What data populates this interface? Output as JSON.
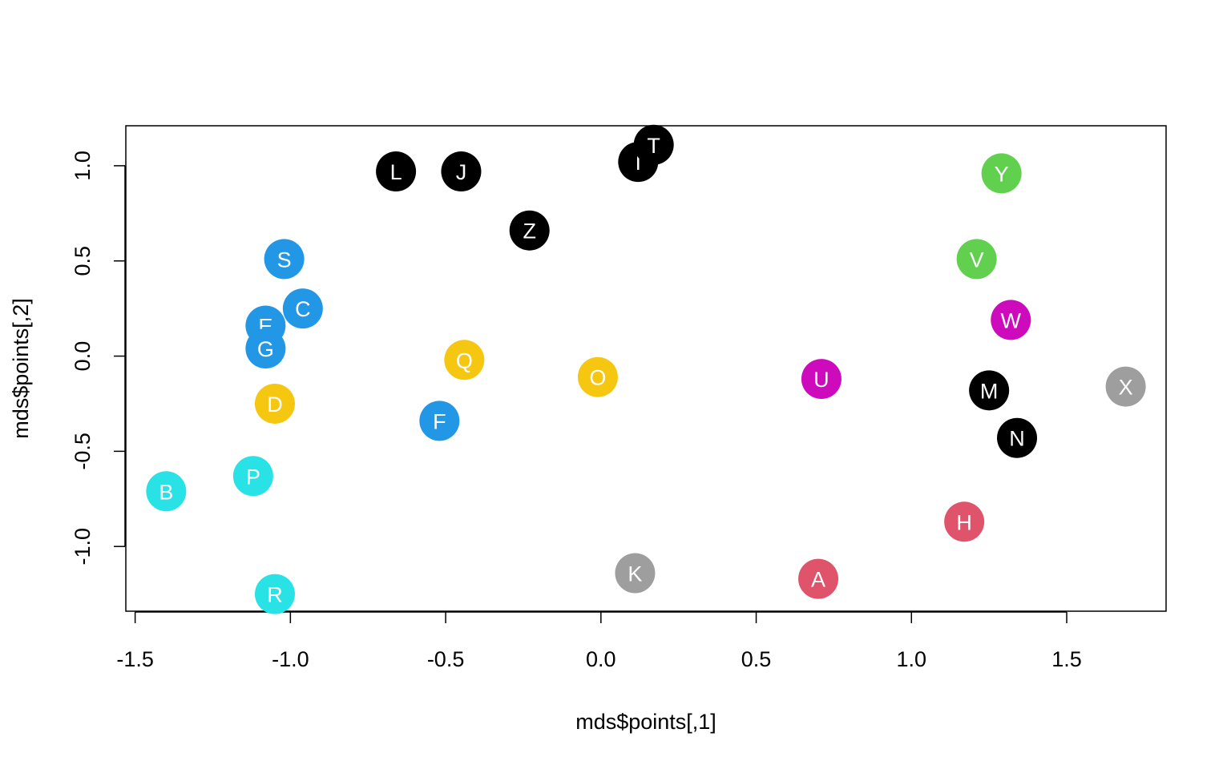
{
  "chart_data": {
    "type": "scatter",
    "title": "",
    "xlabel": "mds$points[,1]",
    "ylabel": "mds$points[,2]",
    "xlim": [
      -1.53,
      1.82
    ],
    "ylim": [
      -1.34,
      1.21
    ],
    "xticks": [
      -1.5,
      -1.0,
      -0.5,
      0.0,
      0.5,
      1.0,
      1.5
    ],
    "yticks": [
      -1.0,
      -0.5,
      0.0,
      0.5,
      1.0
    ],
    "xtick_labels": [
      "-1.5",
      "-1.0",
      "-0.5",
      "0.0",
      "0.5",
      "1.0",
      "1.5"
    ],
    "ytick_labels": [
      "-1.0",
      "-0.5",
      "0.0",
      "0.5",
      "1.0"
    ],
    "grid": false,
    "colors": {
      "black": "#000000",
      "red": "#DF536B",
      "green": "#61D04F",
      "blue": "#2297E6",
      "cyan": "#28E2E5",
      "magenta": "#CD0BBC",
      "yellow": "#F5C710",
      "gray": "#9E9E9E"
    },
    "points": [
      {
        "label": "A",
        "x": 0.7,
        "y": -1.17,
        "color": "red"
      },
      {
        "label": "B",
        "x": -1.4,
        "y": -0.71,
        "color": "cyan"
      },
      {
        "label": "C",
        "x": -0.96,
        "y": 0.25,
        "color": "blue"
      },
      {
        "label": "D",
        "x": -1.05,
        "y": -0.25,
        "color": "yellow"
      },
      {
        "label": "E",
        "x": -1.08,
        "y": 0.16,
        "color": "blue"
      },
      {
        "label": "F",
        "x": -0.52,
        "y": -0.34,
        "color": "blue"
      },
      {
        "label": "G",
        "x": -1.08,
        "y": 0.04,
        "color": "blue"
      },
      {
        "label": "H",
        "x": 1.17,
        "y": -0.87,
        "color": "red"
      },
      {
        "label": "I",
        "x": 0.12,
        "y": 1.02,
        "color": "black"
      },
      {
        "label": "J",
        "x": -0.45,
        "y": 0.97,
        "color": "black"
      },
      {
        "label": "K",
        "x": 0.11,
        "y": -1.14,
        "color": "gray"
      },
      {
        "label": "L",
        "x": -0.66,
        "y": 0.97,
        "color": "black"
      },
      {
        "label": "M",
        "x": 1.25,
        "y": -0.18,
        "color": "black"
      },
      {
        "label": "N",
        "x": 1.34,
        "y": -0.43,
        "color": "black"
      },
      {
        "label": "O",
        "x": -0.01,
        "y": -0.11,
        "color": "yellow"
      },
      {
        "label": "P",
        "x": -1.12,
        "y": -0.63,
        "color": "cyan"
      },
      {
        "label": "Q",
        "x": -0.44,
        "y": -0.02,
        "color": "yellow"
      },
      {
        "label": "R",
        "x": -1.05,
        "y": -1.25,
        "color": "cyan"
      },
      {
        "label": "S",
        "x": -1.02,
        "y": 0.51,
        "color": "blue"
      },
      {
        "label": "T",
        "x": 0.17,
        "y": 1.11,
        "color": "black"
      },
      {
        "label": "U",
        "x": 0.71,
        "y": -0.12,
        "color": "magenta"
      },
      {
        "label": "V",
        "x": 1.21,
        "y": 0.51,
        "color": "green"
      },
      {
        "label": "W",
        "x": 1.32,
        "y": 0.19,
        "color": "magenta"
      },
      {
        "label": "X",
        "x": 1.69,
        "y": -0.16,
        "color": "gray"
      },
      {
        "label": "Y",
        "x": 1.29,
        "y": 0.96,
        "color": "green"
      },
      {
        "label": "Z",
        "x": -0.23,
        "y": 0.66,
        "color": "black"
      }
    ]
  }
}
